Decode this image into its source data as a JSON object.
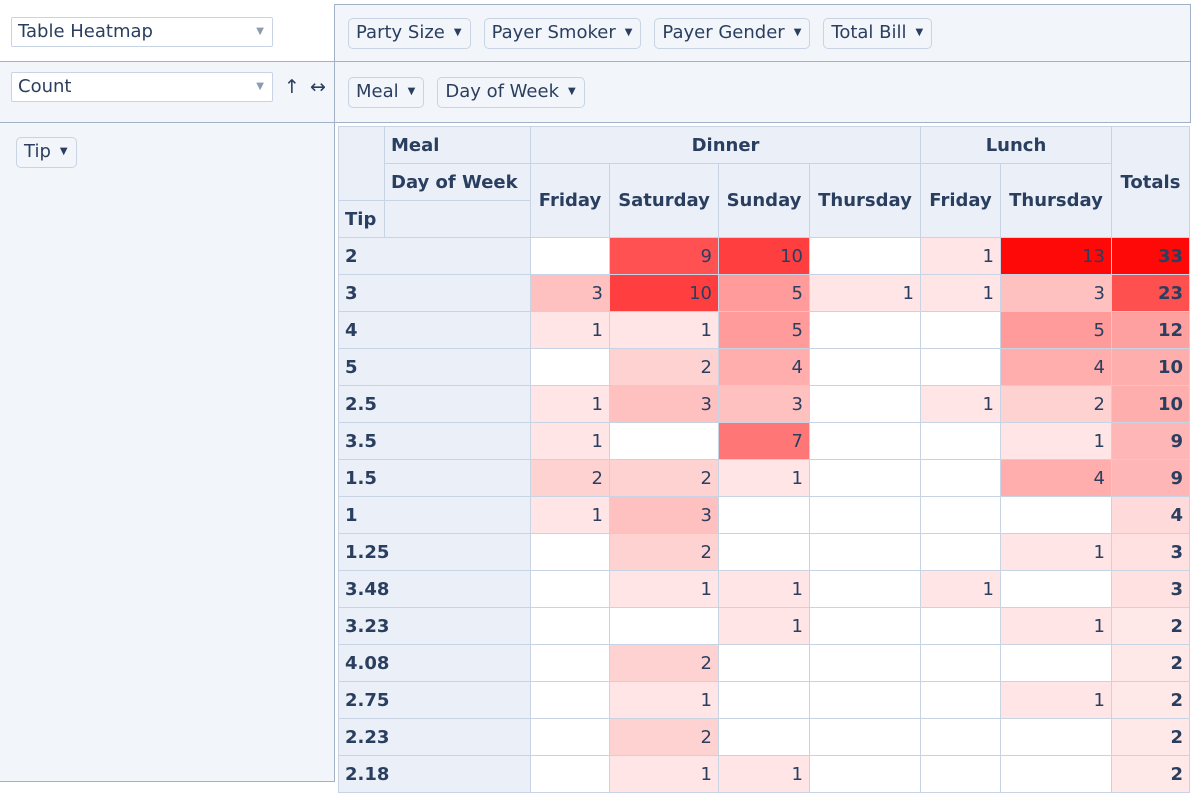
{
  "renderer": {
    "selected": "Table Heatmap"
  },
  "aggregator": {
    "selected": "Count",
    "sort_rows_icon": "↑",
    "sort_cols_icon": "↔"
  },
  "unused_attributes": [
    "Party Size",
    "Payer Smoker",
    "Payer Gender",
    "Total Bill"
  ],
  "column_attributes": [
    "Meal",
    "Day of Week"
  ],
  "row_attributes": [
    "Tip"
  ],
  "heatmap": {
    "accent": "#ff0000",
    "max": 13,
    "total_max": 33
  },
  "pivot": {
    "col_attr_labels": [
      "Meal",
      "Day of Week"
    ],
    "row_attr_label": "Tip",
    "totals_label": "Totals",
    "meal_groups": [
      {
        "label": "Dinner",
        "span": 4
      },
      {
        "label": "Lunch",
        "span": 2
      }
    ],
    "days": [
      "Friday",
      "Saturday",
      "Sunday",
      "Thursday",
      "Friday",
      "Thursday"
    ],
    "rows": [
      {
        "key": "2",
        "cells": [
          "",
          "9",
          "10",
          "",
          "1",
          "13"
        ],
        "total": "33"
      },
      {
        "key": "3",
        "cells": [
          "3",
          "10",
          "5",
          "1",
          "1",
          "3"
        ],
        "total": "23"
      },
      {
        "key": "4",
        "cells": [
          "1",
          "1",
          "5",
          "",
          "",
          "5"
        ],
        "total": "12"
      },
      {
        "key": "5",
        "cells": [
          "",
          "2",
          "4",
          "",
          "",
          "4"
        ],
        "total": "10"
      },
      {
        "key": "2.5",
        "cells": [
          "1",
          "3",
          "3",
          "",
          "1",
          "2"
        ],
        "total": "10"
      },
      {
        "key": "3.5",
        "cells": [
          "1",
          "",
          "7",
          "",
          "",
          "1"
        ],
        "total": "9"
      },
      {
        "key": "1.5",
        "cells": [
          "2",
          "2",
          "1",
          "",
          "",
          "4"
        ],
        "total": "9"
      },
      {
        "key": "1",
        "cells": [
          "1",
          "3",
          "",
          "",
          "",
          ""
        ],
        "total": "4"
      },
      {
        "key": "1.25",
        "cells": [
          "",
          "2",
          "",
          "",
          "",
          "1"
        ],
        "total": "3"
      },
      {
        "key": "3.48",
        "cells": [
          "",
          "1",
          "1",
          "",
          "1",
          ""
        ],
        "total": "3"
      },
      {
        "key": "3.23",
        "cells": [
          "",
          "",
          "1",
          "",
          "",
          "1"
        ],
        "total": "2"
      },
      {
        "key": "4.08",
        "cells": [
          "",
          "2",
          "",
          "",
          "",
          ""
        ],
        "total": "2"
      },
      {
        "key": "2.75",
        "cells": [
          "",
          "1",
          "",
          "",
          "",
          "1"
        ],
        "total": "2"
      },
      {
        "key": "2.23",
        "cells": [
          "",
          "2",
          "",
          "",
          "",
          ""
        ],
        "total": "2"
      },
      {
        "key": "2.18",
        "cells": [
          "",
          "1",
          "1",
          "",
          "",
          ""
        ],
        "total": "2"
      }
    ]
  }
}
